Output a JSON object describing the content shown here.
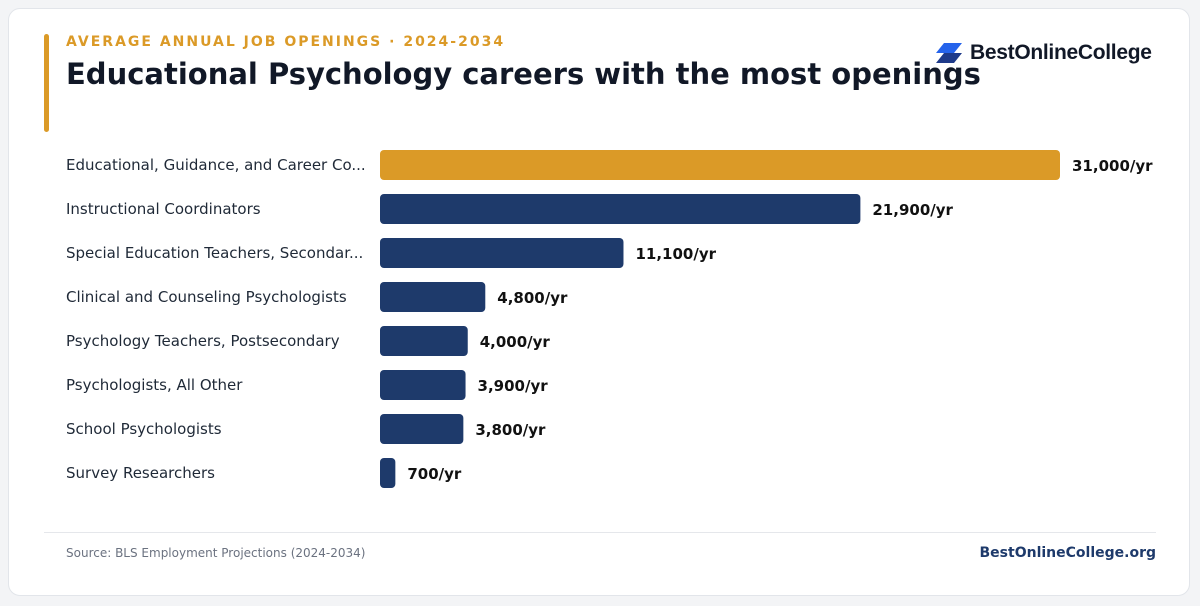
{
  "header": {
    "eyebrow": "AVERAGE ANNUAL JOB OPENINGS · 2024-2034",
    "title": "Educational Psychology careers with the most openings"
  },
  "brand": {
    "logo_text": "BestOnlineCollege",
    "logo_icon": "stacked-parallelogram-logo-icon",
    "colors": {
      "logo_top": "#2563eb",
      "logo_bottom": "#1e3a8a"
    }
  },
  "footer": {
    "source": "Source: BLS Employment Projections (2024-2034)",
    "site": "BestOnlineCollege.org"
  },
  "colors": {
    "highlight_bar": "#db9a27",
    "bar": "#1e3a6b",
    "label_text": "#1f2937",
    "value_text": "#111111"
  },
  "chart_data": {
    "type": "bar",
    "orientation": "horizontal",
    "categories": [
      "Educational, Guidance, and Career Co...",
      "Instructional Coordinators",
      "Special Education Teachers, Secondar...",
      "Clinical and Counseling Psychologists",
      "Psychology Teachers, Postsecondary",
      "Psychologists, All Other",
      "School Psychologists",
      "Survey Researchers"
    ],
    "values": [
      31000,
      21900,
      11100,
      4800,
      4000,
      3900,
      3800,
      700
    ],
    "value_labels": [
      "31,000/yr",
      "21,900/yr",
      "11,100/yr",
      "4,800/yr",
      "4,000/yr",
      "3,900/yr",
      "3,800/yr",
      "700/yr"
    ],
    "highlight_index": 0,
    "xlim": [
      0,
      31000
    ],
    "grid": false,
    "legend": "none"
  }
}
